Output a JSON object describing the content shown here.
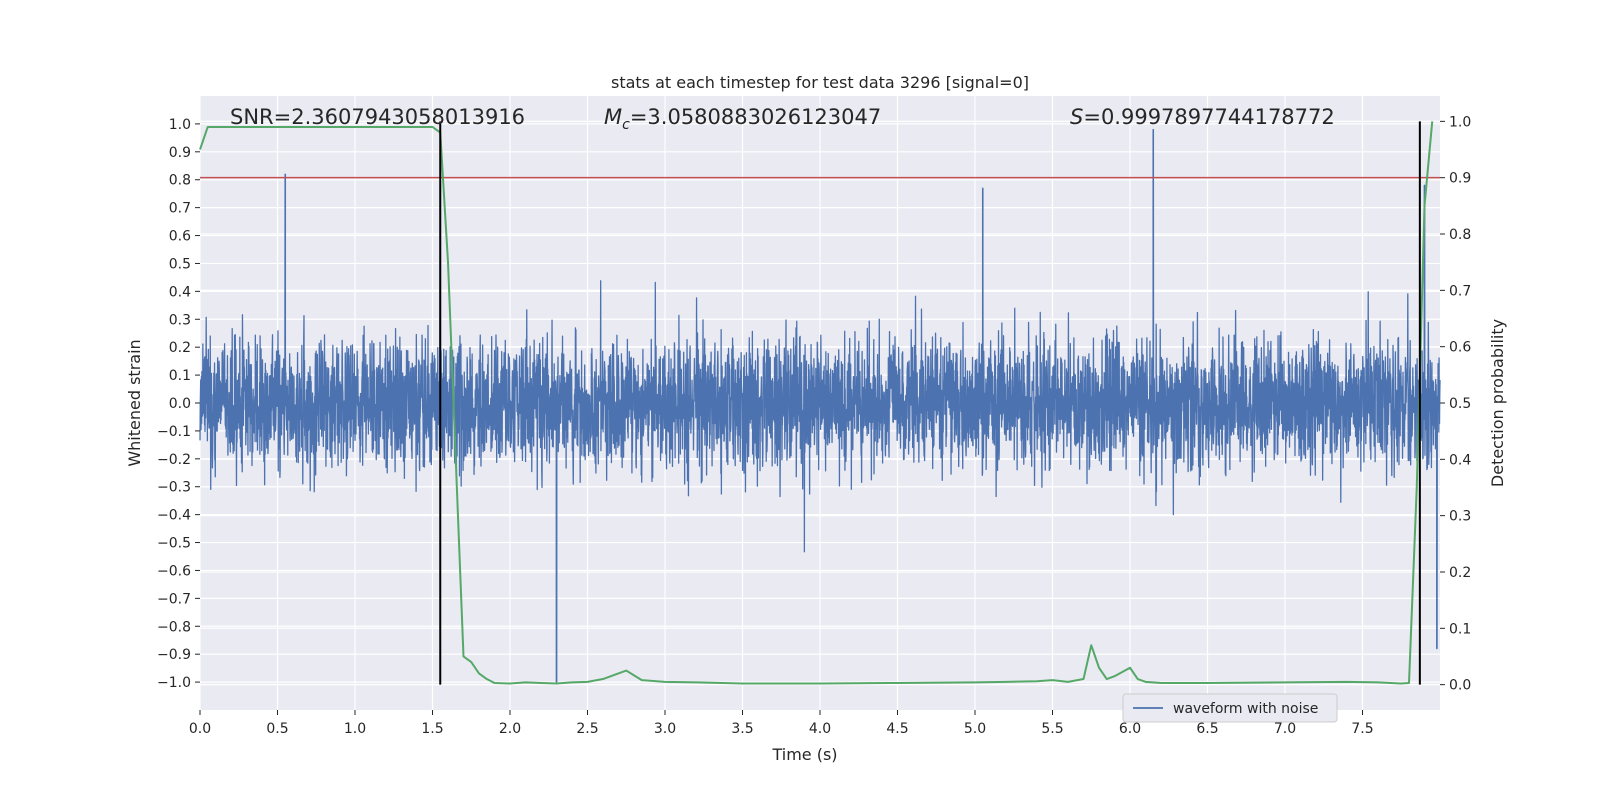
{
  "chart_data": {
    "type": "line",
    "title": "stats at each timestep for test data 3296 [signal=0]",
    "xlabel": "Time (s)",
    "ylabel": "Whitened strain",
    "y2label": "Detection probability",
    "xlim": [
      0.0,
      8.0
    ],
    "ylim": [
      -1.1,
      1.1
    ],
    "y2lim": [
      -0.045,
      1.045
    ],
    "xticks": [
      0.0,
      0.5,
      1.0,
      1.5,
      2.0,
      2.5,
      3.0,
      3.5,
      4.0,
      4.5,
      5.0,
      5.5,
      6.0,
      6.5,
      7.0,
      7.5
    ],
    "xtick_labels": [
      "0.0",
      "0.5",
      "1.0",
      "1.5",
      "2.0",
      "2.5",
      "3.0",
      "3.5",
      "4.0",
      "4.5",
      "5.0",
      "5.5",
      "6.0",
      "6.5",
      "7.0",
      "7.5"
    ],
    "yticks": [
      -1.0,
      -0.9,
      -0.8,
      -0.7,
      -0.6,
      -0.5,
      -0.4,
      -0.3,
      -0.2,
      -0.1,
      0.0,
      0.1,
      0.2,
      0.3,
      0.4,
      0.5,
      0.6,
      0.7,
      0.8,
      0.9,
      1.0
    ],
    "ytick_labels": [
      "−1.0",
      "−0.9",
      "−0.8",
      "−0.7",
      "−0.6",
      "−0.5",
      "−0.4",
      "−0.3",
      "−0.2",
      "−0.1",
      "0.0",
      "0.1",
      "0.2",
      "0.3",
      "0.4",
      "0.5",
      "0.6",
      "0.7",
      "0.8",
      "0.9",
      "1.0"
    ],
    "y2ticks": [
      0.0,
      0.1,
      0.2,
      0.3,
      0.4,
      0.5,
      0.6,
      0.7,
      0.8,
      0.9,
      1.0
    ],
    "y2tick_labels": [
      "0.0",
      "0.1",
      "0.2",
      "0.3",
      "0.4",
      "0.5",
      "0.6",
      "0.7",
      "0.8",
      "0.9",
      "1.0"
    ],
    "annotations": {
      "snr": "SNR=2.3607943058013916",
      "mc_symbol": "M",
      "mc_sub": "c",
      "mc_value": "=3.0580883026123047",
      "s_symbol": "S",
      "s_value": "=0.9997897744178772"
    },
    "legend": {
      "label": "waveform with noise",
      "position": "lower-right"
    },
    "series": [
      {
        "name": "waveform with noise",
        "color": "#4c72b0",
        "axis": "left",
        "description": "whitened noise strain, typical amplitude about +/-0.35 with spikes",
        "peaks": [
          {
            "x": 0.55,
            "y": 0.82
          },
          {
            "x": 1.55,
            "y": 0.78
          },
          {
            "x": 2.3,
            "y": -1.0
          },
          {
            "x": 5.05,
            "y": 0.77
          },
          {
            "x": 6.15,
            "y": 0.98
          },
          {
            "x": 7.9,
            "y": 0.78
          },
          {
            "x": 7.98,
            "y": -0.88
          }
        ]
      },
      {
        "name": "detection probability",
        "color": "#55a868",
        "axis": "right",
        "x": [
          0.0,
          0.05,
          0.2,
          0.4,
          0.6,
          0.8,
          1.0,
          1.2,
          1.4,
          1.5,
          1.55,
          1.6,
          1.7,
          1.75,
          1.8,
          1.85,
          1.9,
          2.0,
          2.1,
          2.2,
          2.3,
          2.4,
          2.5,
          2.6,
          2.75,
          2.85,
          3.0,
          3.2,
          3.5,
          4.0,
          4.5,
          5.0,
          5.2,
          5.4,
          5.5,
          5.6,
          5.7,
          5.75,
          5.8,
          5.85,
          5.9,
          6.0,
          6.05,
          6.1,
          6.2,
          6.5,
          7.0,
          7.4,
          7.6,
          7.75,
          7.8,
          7.85,
          7.9,
          7.95
        ],
        "y": [
          0.95,
          0.99,
          0.99,
          0.99,
          0.99,
          0.99,
          0.99,
          0.99,
          0.99,
          0.99,
          0.98,
          0.75,
          0.05,
          0.04,
          0.02,
          0.01,
          0.003,
          0.002,
          0.004,
          0.003,
          0.002,
          0.004,
          0.005,
          0.01,
          0.025,
          0.008,
          0.005,
          0.004,
          0.002,
          0.002,
          0.003,
          0.004,
          0.005,
          0.006,
          0.008,
          0.005,
          0.01,
          0.07,
          0.03,
          0.01,
          0.015,
          0.03,
          0.01,
          0.005,
          0.003,
          0.003,
          0.004,
          0.005,
          0.004,
          0.002,
          0.003,
          0.35,
          0.85,
          1.0
        ]
      },
      {
        "name": "threshold",
        "color": "#c44e52",
        "axis": "right",
        "y": 0.9
      }
    ],
    "vlines": [
      1.55,
      7.87
    ]
  }
}
